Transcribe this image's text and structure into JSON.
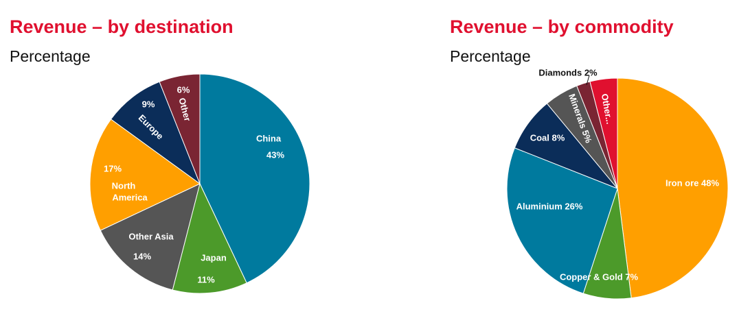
{
  "colors": {
    "title": "#e0102f",
    "subtitle": "#111111"
  },
  "charts": [
    {
      "title": "Revenue – by destination",
      "subtitle": "Percentage"
    },
    {
      "title": "Revenue – by commodity",
      "subtitle": "Percentage"
    }
  ],
  "chart_data": [
    {
      "type": "pie",
      "title": "Revenue – by destination",
      "subtitle": "Percentage",
      "start": "12 o'clock",
      "direction": "clockwise",
      "slices": [
        {
          "category": "China",
          "value": 43,
          "value_label": "43%",
          "color": "#007a9e",
          "label_color": "#ffffff"
        },
        {
          "category": "Japan",
          "value": 11,
          "value_label": "11%",
          "color": "#4c9a2a",
          "label_color": "#ffffff"
        },
        {
          "category": "Other Asia",
          "value": 14,
          "value_label": "14%",
          "color": "#555555",
          "label_color": "#ffffff"
        },
        {
          "category": "North America",
          "category_lines": [
            "North",
            "America"
          ],
          "value": 17,
          "value_label": "17%",
          "color": "#ff9f00",
          "label_color": "#ffffff"
        },
        {
          "category": "Europe",
          "value": 9,
          "value_label": "9%",
          "color": "#0b2d59",
          "label_color": "#ffffff"
        },
        {
          "category": "Other",
          "value": 6,
          "value_label": "6%",
          "color": "#7a2533",
          "label_color": "#ffffff"
        }
      ]
    },
    {
      "type": "pie",
      "title": "Revenue – by commodity",
      "subtitle": "Percentage",
      "start": "12 o'clock",
      "direction": "clockwise",
      "slices": [
        {
          "category": "Iron ore",
          "value": 48,
          "value_label": "48%",
          "color": "#ff9f00",
          "label_color": "#ffffff"
        },
        {
          "category": "Copper & Gold",
          "value": 7,
          "value_label": "7%",
          "color": "#4c9a2a",
          "label_color": "#ffffff"
        },
        {
          "category": "Aluminium",
          "value": 26,
          "value_label": "26%",
          "color": "#007a9e",
          "label_color": "#ffffff"
        },
        {
          "category": "Coal",
          "value": 8,
          "value_label": "8%",
          "color": "#0b2d59",
          "label_color": "#ffffff"
        },
        {
          "category": "Minerals",
          "value": 5,
          "value_label": "5%",
          "color": "#555555",
          "label_color": "#ffffff"
        },
        {
          "category": "Diamonds",
          "value": 2,
          "value_label": "2%",
          "color": "#7a2533",
          "label_color": "#111111"
        },
        {
          "category": "Other...",
          "value": 4,
          "value_label": "",
          "color": "#e0102f",
          "label_color": "#ffffff"
        }
      ]
    }
  ]
}
